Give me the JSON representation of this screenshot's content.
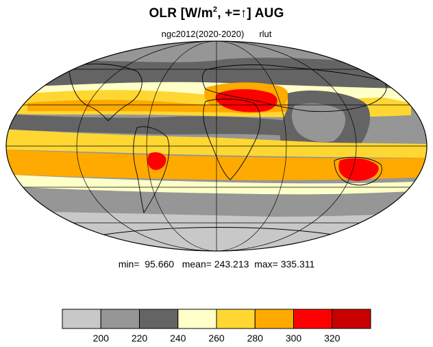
{
  "header": {
    "title_main": "OLR [W/m",
    "title_sup": "2",
    "title_tail": ", +=↑] AUG",
    "subtitle_left": "ngc2012(2020-2020)",
    "subtitle_right": "rlut"
  },
  "stats": {
    "text": "min=  95.660   mean= 243.213  max= 335.311"
  },
  "colorbar": {
    "levels": [
      "200",
      "220",
      "240",
      "260",
      "280",
      "300",
      "320"
    ],
    "colors": [
      "#c8c8c8",
      "#969696",
      "#646464",
      "#ffffc8",
      "#ffd732",
      "#ffaa00",
      "#ff0000",
      "#c80000"
    ]
  },
  "map": {
    "projection": "mollweide",
    "outline_color": "#000000",
    "grid": true
  }
}
